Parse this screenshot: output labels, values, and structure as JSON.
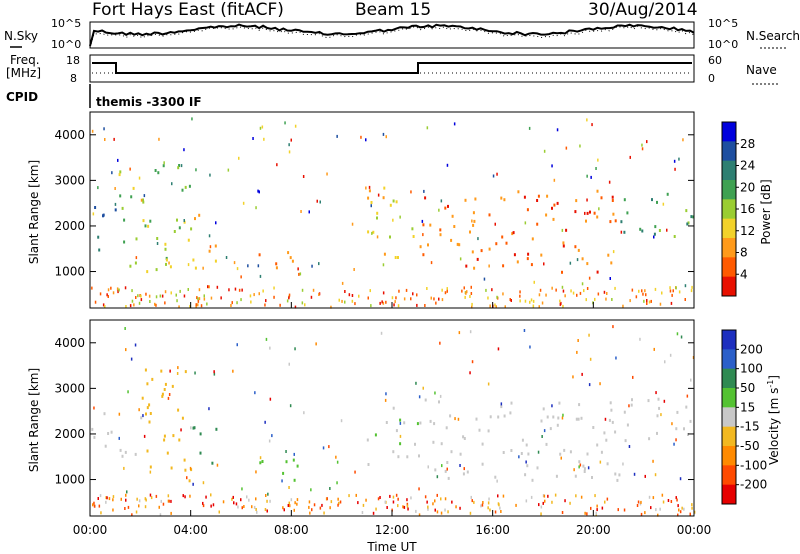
{
  "header": {
    "station": "Fort Hays East (fitACF)",
    "beam": "Beam 15",
    "date": "30/Aug/2014"
  },
  "noise_panel": {
    "left_label": "N.Sky",
    "right_label": "N.Search",
    "left_ticks": [
      "10^5",
      "10^0"
    ],
    "right_ticks": [
      "10^5",
      "10^0"
    ]
  },
  "freq_panel": {
    "left_label_1": "Freq.",
    "left_label_2": "[MHz]",
    "right_label": "Nave",
    "left_ticks": [
      "18",
      "8"
    ],
    "right_ticks": [
      "60",
      "0"
    ]
  },
  "cpid": {
    "label": "CPID",
    "text": "themis -3300 IF"
  },
  "power_panel": {
    "ylabel": "Slant Range [km]",
    "yticks": [
      "4000",
      "3000",
      "2000",
      "1000"
    ],
    "colorbar_label": "Power [dB]",
    "colorbar_ticks": [
      "28",
      "24",
      "20",
      "16",
      "12",
      "8",
      "4"
    ],
    "colors": [
      "#0000dd",
      "#1e4fa0",
      "#2e7f72",
      "#3fa152",
      "#9acd32",
      "#f2d22a",
      "#ff9a1a",
      "#ff5a00",
      "#e81000"
    ]
  },
  "velocity_panel": {
    "ylabel": "Slant Range [km]",
    "yticks": [
      "4000",
      "3000",
      "2000",
      "1000"
    ],
    "colorbar_label": "Velocity [m s^-1]",
    "colorbar_ticks": [
      "200",
      "100",
      "50",
      "15",
      "-15",
      "-50",
      "-100",
      "-200"
    ],
    "colors": [
      "#1d2fbf",
      "#2b5fc9",
      "#2f8a52",
      "#54c232",
      "#c8c8c8",
      "#f2b820",
      "#ff8a00",
      "#ff4a00",
      "#e60000"
    ]
  },
  "xaxis": {
    "label": "Time UT",
    "ticks": [
      "00:00",
      "04:00",
      "08:00",
      "12:00",
      "16:00",
      "20:00",
      "00:00"
    ]
  },
  "chart_data": [
    {
      "type": "heatmap",
      "title": "Power",
      "x_range_hours": [
        0,
        24
      ],
      "ylim_km": [
        200,
        4500
      ],
      "colorbar_range_db": [
        0,
        30
      ],
      "regions": [
        {
          "t0": 0.0,
          "t1": 1.0,
          "r0": 1500,
          "r1": 2600,
          "level": 24
        },
        {
          "t0": 1.0,
          "t1": 4.0,
          "r0": 1000,
          "r1": 3400,
          "level": 16
        },
        {
          "t0": 4.0,
          "t1": 5.0,
          "r0": 1100,
          "r1": 2400,
          "level": 10
        },
        {
          "t0": 6.5,
          "t1": 8.5,
          "r0": 1100,
          "r1": 1600,
          "level": 6
        },
        {
          "t0": 11.0,
          "t1": 13.0,
          "r0": 1300,
          "r1": 2900,
          "level": 12
        },
        {
          "t0": 13.0,
          "t1": 21.0,
          "r0": 1000,
          "r1": 2800,
          "level": 6
        },
        {
          "t0": 21.0,
          "t1": 24.0,
          "r0": 1800,
          "r1": 2900,
          "level": 20
        }
      ]
    },
    {
      "type": "heatmap",
      "title": "Velocity",
      "x_range_hours": [
        0,
        24
      ],
      "ylim_km": [
        200,
        4500
      ],
      "colorbar_range_ms": [
        -250,
        250
      ],
      "regions": [
        {
          "t0": 0.0,
          "t1": 2.0,
          "r0": 1500,
          "r1": 2500,
          "level": 0
        },
        {
          "t0": 2.0,
          "t1": 4.0,
          "r0": 1000,
          "r1": 3700,
          "level": -60
        },
        {
          "t0": 4.0,
          "t1": 5.0,
          "r0": 1300,
          "r1": 2300,
          "level": 120
        },
        {
          "t0": 6.5,
          "t1": 8.5,
          "r0": 1000,
          "r1": 1600,
          "level": 40
        },
        {
          "t0": 11.0,
          "t1": 13.0,
          "r0": 1300,
          "r1": 2600,
          "level": 20
        },
        {
          "t0": 13.0,
          "t1": 21.0,
          "r0": 1000,
          "r1": 2800,
          "level": 0
        },
        {
          "t0": 21.0,
          "t1": 24.0,
          "r0": 1800,
          "r1": 2800,
          "level": 0
        }
      ]
    }
  ]
}
